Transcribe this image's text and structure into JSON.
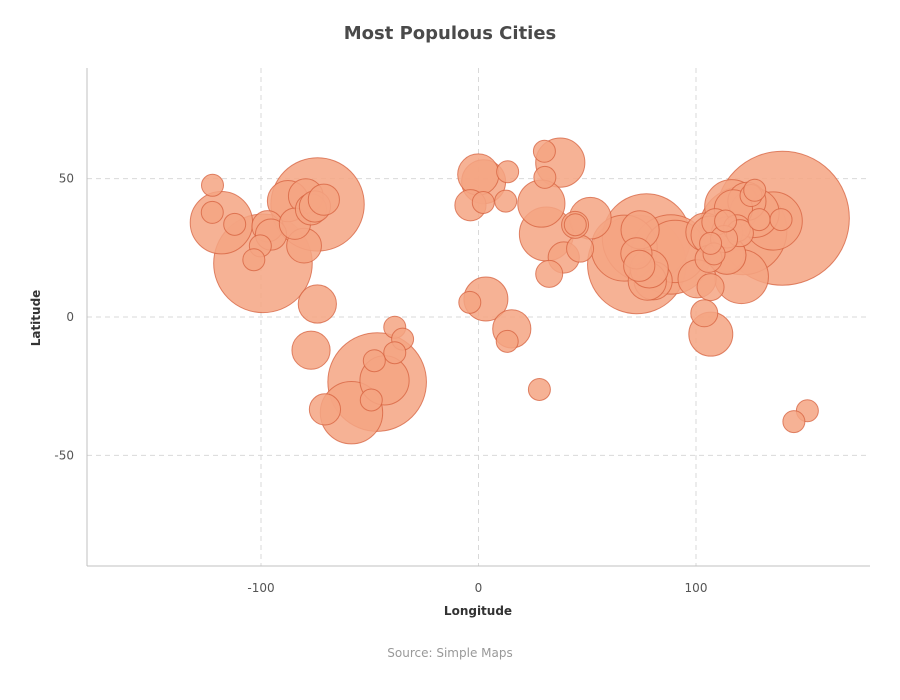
{
  "chart_data": {
    "type": "scatter",
    "title": "Most Populous Cities",
    "xlabel": "Longitude",
    "ylabel": "Latitude",
    "xlim": [
      -180,
      180
    ],
    "ylim": [
      -90,
      90
    ],
    "xticks": [
      -100,
      0,
      100
    ],
    "yticks": [
      -50,
      0,
      50
    ],
    "grid": true,
    "legend": "none",
    "source": "Source: Simple Maps",
    "colors": {
      "fill": "#f4a582",
      "stroke": "#d6603e",
      "title": "#4a4a4a"
    },
    "size_encoding": "population",
    "points": [
      {
        "x": 139.7,
        "y": 35.7,
        "size": 37
      },
      {
        "x": -99.1,
        "y": 19.4,
        "size": 20
      },
      {
        "x": 72.8,
        "y": 19.0,
        "size": 20
      },
      {
        "x": -46.6,
        "y": -23.5,
        "size": 20
      },
      {
        "x": 77.2,
        "y": 28.6,
        "size": 16
      },
      {
        "x": -74.0,
        "y": 40.7,
        "size": 18
      },
      {
        "x": 121.5,
        "y": 31.2,
        "size": 16
      },
      {
        "x": 88.4,
        "y": 22.6,
        "size": 13
      },
      {
        "x": 67.0,
        "y": 24.9,
        "size": 9
      },
      {
        "x": 90.4,
        "y": 23.7,
        "size": 8
      },
      {
        "x": -58.4,
        "y": -34.6,
        "size": 8
      },
      {
        "x": -118.2,
        "y": 34.1,
        "size": 8
      },
      {
        "x": 135.5,
        "y": 34.7,
        "size": 7
      },
      {
        "x": 31.2,
        "y": 30.0,
        "size": 6
      },
      {
        "x": 37.6,
        "y": 55.8,
        "size": 5
      },
      {
        "x": 116.4,
        "y": 39.9,
        "size": 6
      },
      {
        "x": 120.9,
        "y": 14.6,
        "size": 6
      },
      {
        "x": 126.9,
        "y": 37.6,
        "size": 5
      },
      {
        "x": -43.2,
        "y": -22.9,
        "size": 5
      },
      {
        "x": 28.9,
        "y": 41.0,
        "size": 4.6
      },
      {
        "x": 2.35,
        "y": 48.9,
        "size": 4
      },
      {
        "x": 3.4,
        "y": 6.5,
        "size": 4
      },
      {
        "x": 106.8,
        "y": -6.2,
        "size": 4
      },
      {
        "x": -87.6,
        "y": 41.9,
        "size": 3.5
      },
      {
        "x": 51.4,
        "y": 35.7,
        "size": 3.6
      },
      {
        "x": -0.1,
        "y": 51.5,
        "size": 3.5
      },
      {
        "x": 113.3,
        "y": 23.1,
        "size": 3
      },
      {
        "x": 114.1,
        "y": 22.5,
        "size": 3
      },
      {
        "x": 104.1,
        "y": 30.7,
        "size": 3
      },
      {
        "x": 123.4,
        "y": 41.8,
        "size": 3
      },
      {
        "x": 117.2,
        "y": 39.1,
        "size": 3
      },
      {
        "x": 106.5,
        "y": 29.6,
        "size": 3
      },
      {
        "x": 80.3,
        "y": 13.1,
        "size": 3
      },
      {
        "x": 77.6,
        "y": 12.97,
        "size": 3
      },
      {
        "x": 100.5,
        "y": 13.8,
        "size": 3
      },
      {
        "x": -77.0,
        "y": -12.0,
        "size": 3
      },
      {
        "x": -74.1,
        "y": 4.7,
        "size": 3
      },
      {
        "x": 15.3,
        "y": -4.3,
        "size": 3
      },
      {
        "x": 74.3,
        "y": 31.5,
        "size": 3
      },
      {
        "x": 114.2,
        "y": 22.3,
        "size": 3
      },
      {
        "x": -79.4,
        "y": 43.7,
        "size": 2.5
      },
      {
        "x": -80.2,
        "y": 25.8,
        "size": 2.5
      },
      {
        "x": -97.0,
        "y": 32.8,
        "size": 2
      },
      {
        "x": -95.4,
        "y": 29.8,
        "size": 2
      },
      {
        "x": -84.4,
        "y": 33.7,
        "size": 2
      },
      {
        "x": -77.0,
        "y": 38.9,
        "size": 2
      },
      {
        "x": -75.2,
        "y": 39.95,
        "size": 2
      },
      {
        "x": -71.1,
        "y": 42.4,
        "size": 2
      },
      {
        "x": -70.6,
        "y": -33.4,
        "size": 2
      },
      {
        "x": -3.7,
        "y": 40.4,
        "size": 2
      },
      {
        "x": 39.2,
        "y": 21.5,
        "size": 2
      },
      {
        "x": 46.7,
        "y": 24.7,
        "size": 1.5
      },
      {
        "x": 44.4,
        "y": 33.3,
        "size": 1.5
      },
      {
        "x": 32.5,
        "y": 15.6,
        "size": 1.5
      },
      {
        "x": 78.5,
        "y": 17.4,
        "size": 3
      },
      {
        "x": 72.6,
        "y": 23.0,
        "size": 2
      },
      {
        "x": 73.9,
        "y": 18.5,
        "size": 2
      },
      {
        "x": 105.8,
        "y": 21.0,
        "size": 1.5
      },
      {
        "x": 106.7,
        "y": 10.8,
        "size": 1.5
      },
      {
        "x": 103.8,
        "y": 1.35,
        "size": 1.5
      },
      {
        "x": 108.9,
        "y": 34.3,
        "size": 1.5
      },
      {
        "x": 114.3,
        "y": 30.6,
        "size": 2
      },
      {
        "x": 118.8,
        "y": 32.1,
        "size": 1.5
      },
      {
        "x": 120.2,
        "y": 30.3,
        "size": 1.5
      },
      {
        "x": 112.9,
        "y": 28.2,
        "size": 1.5
      },
      {
        "x": 125.3,
        "y": 43.9,
        "size": 1
      },
      {
        "x": 127.0,
        "y": 45.8,
        "size": 1
      },
      {
        "x": 129.0,
        "y": 35.2,
        "size": 1
      },
      {
        "x": 139.1,
        "y": 35.2,
        "size": 1
      },
      {
        "x": 151.2,
        "y": -33.9,
        "size": 1
      },
      {
        "x": 145.0,
        "y": -37.8,
        "size": 1
      },
      {
        "x": 108.3,
        "y": 22.8,
        "size": 1
      },
      {
        "x": 113.6,
        "y": 34.7,
        "size": 1
      },
      {
        "x": 106.7,
        "y": 26.6,
        "size": 1
      },
      {
        "x": 30.5,
        "y": 50.45,
        "size": 1
      },
      {
        "x": 30.3,
        "y": 59.9,
        "size": 1
      },
      {
        "x": 13.4,
        "y": 52.5,
        "size": 1
      },
      {
        "x": 12.5,
        "y": 41.9,
        "size": 1
      },
      {
        "x": 2.2,
        "y": 41.4,
        "size": 1
      },
      {
        "x": -4.0,
        "y": 5.3,
        "size": 1
      },
      {
        "x": 13.2,
        "y": -8.8,
        "size": 1
      },
      {
        "x": 28.0,
        "y": -26.2,
        "size": 1
      },
      {
        "x": -38.5,
        "y": -3.7,
        "size": 1
      },
      {
        "x": -34.9,
        "y": -8.0,
        "size": 1
      },
      {
        "x": -38.5,
        "y": -12.9,
        "size": 1
      },
      {
        "x": -47.9,
        "y": -15.8,
        "size": 1
      },
      {
        "x": -49.3,
        "y": -30.0,
        "size": 1
      },
      {
        "x": -112.1,
        "y": 33.5,
        "size": 1
      },
      {
        "x": -122.4,
        "y": 37.8,
        "size": 1
      },
      {
        "x": -122.3,
        "y": 47.6,
        "size": 1
      },
      {
        "x": -100.3,
        "y": 25.7,
        "size": 1
      },
      {
        "x": -103.3,
        "y": 20.7,
        "size": 1
      },
      {
        "x": 44.5,
        "y": 33.35,
        "size": 1
      }
    ]
  }
}
